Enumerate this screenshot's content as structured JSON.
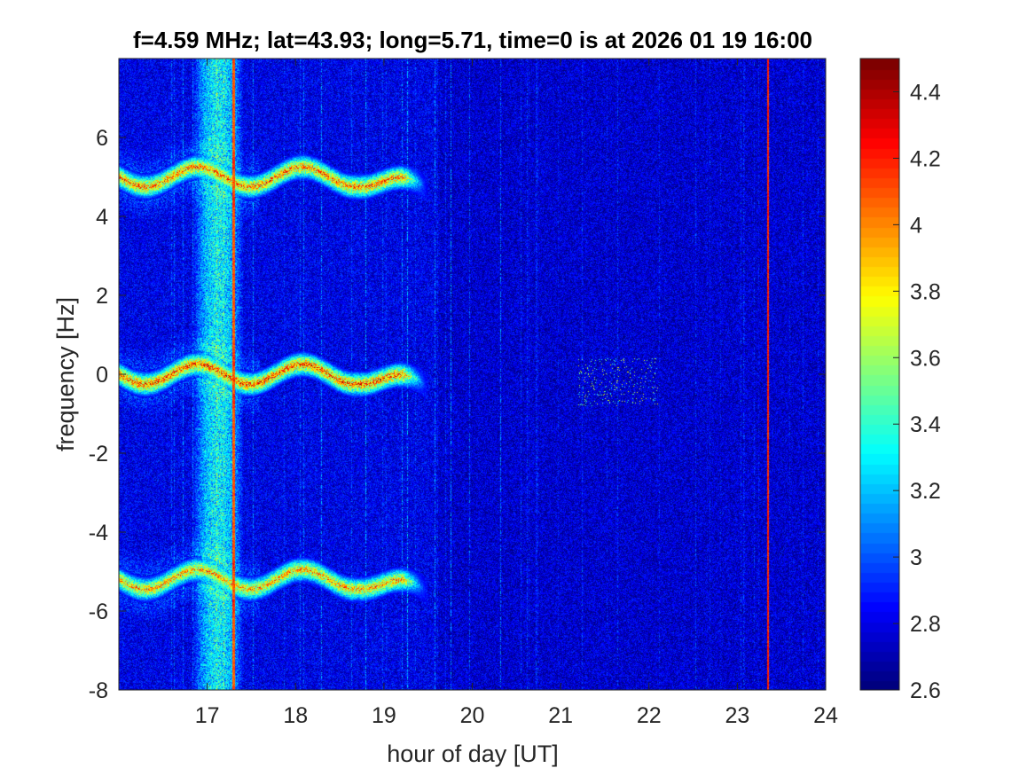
{
  "chart_data": {
    "type": "heatmap",
    "title": "f=4.59 MHz;  lat=43.93; long=5.71, time=0 is at 2026 01 19 16:00",
    "xlabel": "hour of day [UT]",
    "ylabel": "frequency [Hz]",
    "xlim": [
      16.0,
      24.0
    ],
    "ylim": [
      -8,
      8
    ],
    "xticks": [
      "17",
      "18",
      "19",
      "20",
      "21",
      "22",
      "23",
      "24"
    ],
    "yticks": [
      "-8",
      "-6",
      "-4",
      "-2",
      "0",
      "2",
      "4",
      "6"
    ],
    "colorbar": {
      "colormap": "jet",
      "range": [
        2.6,
        4.5
      ],
      "ticks": [
        "2.6",
        "2.8",
        "3",
        "3.2",
        "3.4",
        "3.6",
        "3.8",
        "4",
        "4.2",
        "4.4"
      ]
    },
    "background_level": 2.75,
    "features": [
      {
        "kind": "vertical-band",
        "x_range": [
          16.9,
          17.35
        ],
        "level": 3.3
      },
      {
        "kind": "vertical-line",
        "x": 17.3,
        "level": 4.2
      },
      {
        "kind": "vertical-line",
        "x": 23.35,
        "level": 4.3
      },
      {
        "kind": "trace",
        "y": 0.0,
        "x_range": [
          16.0,
          19.5
        ],
        "level": 4.4
      },
      {
        "kind": "trace",
        "y": 5.0,
        "x_range": [
          16.0,
          19.5
        ],
        "level": 4.3
      },
      {
        "kind": "trace",
        "y": -5.2,
        "x_range": [
          16.0,
          19.5
        ],
        "level": 4.2
      },
      {
        "kind": "faint-streaks",
        "x_range": [
          21.2,
          22.1
        ],
        "level": 3.3
      }
    ]
  }
}
